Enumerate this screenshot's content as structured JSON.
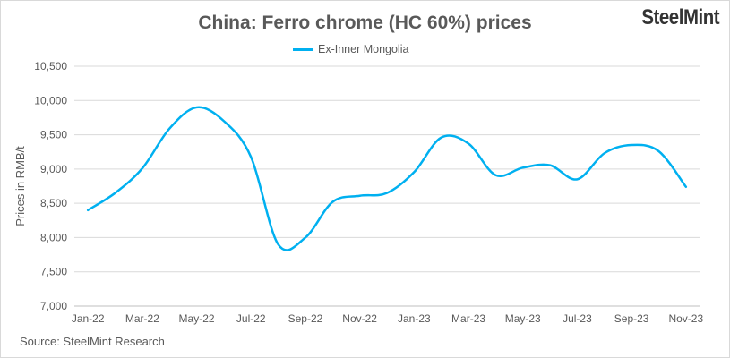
{
  "chart_data": {
    "type": "line",
    "title": "China: Ferro chrome (HC 60%) prices",
    "ylabel": "Prices in RMB/t",
    "xlabel": "",
    "ylim": [
      7000,
      10500
    ],
    "yticks": [
      "7,000",
      "7,500",
      "8,000",
      "8,500",
      "9,000",
      "9,500",
      "10,000",
      "10,500"
    ],
    "ytick_values": [
      7000,
      7500,
      8000,
      8500,
      9000,
      9500,
      10000,
      10500
    ],
    "grid": true,
    "smooth": true,
    "legend_position": "top",
    "x": [
      "Jan-22",
      "Feb-22",
      "Mar-22",
      "Apr-22",
      "May-22",
      "Jun-22",
      "Jul-22",
      "Aug-22",
      "Sep-22",
      "Oct-22",
      "Nov-22",
      "Dec-22",
      "Jan-23",
      "Feb-23",
      "Mar-23",
      "Apr-23",
      "May-23",
      "Jun-23",
      "Jul-23",
      "Aug-23",
      "Sep-23",
      "Oct-23",
      "Nov-23"
    ],
    "xtick_labels": [
      "Jan-22",
      "Mar-22",
      "May-22",
      "Jul-22",
      "Sep-22",
      "Nov-22",
      "Jan-23",
      "Mar-23",
      "May-23",
      "Jul-23",
      "Sep-23",
      "Nov-23"
    ],
    "series": [
      {
        "name": "Ex-Inner Mongolia",
        "color": "#00b0f0",
        "values": [
          8400,
          8650,
          9010,
          9590,
          9900,
          9700,
          9175,
          7900,
          8000,
          8520,
          8610,
          8650,
          8955,
          9460,
          9370,
          8910,
          9020,
          9055,
          8850,
          9230,
          9350,
          9260,
          8740
        ]
      }
    ]
  },
  "logo": "SteelMint",
  "source": "Source: SteelMint Research"
}
